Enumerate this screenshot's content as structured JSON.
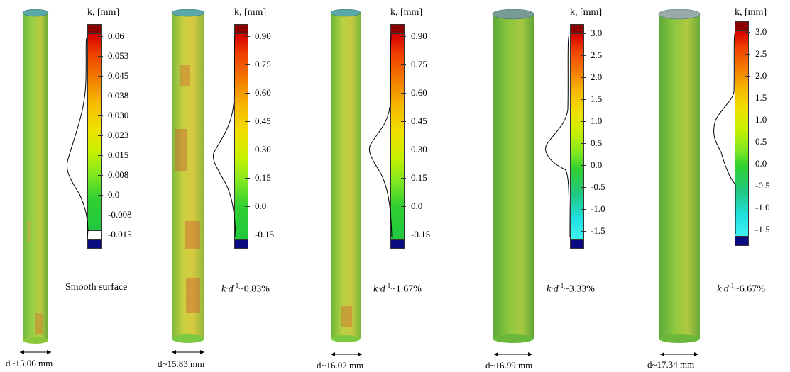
{
  "panels": [
    {
      "unit_label": "k, [mm]",
      "ticks": [
        "0.06",
        "0.053",
        "0.045",
        "0.038",
        "0.030",
        "0.023",
        "0.015",
        "0.008",
        "0.0",
        "-0.008",
        "-0.015"
      ],
      "caption": "Smooth  surface",
      "diameter": "d~15.06 mm",
      "surface_color": "#8ccc3c",
      "gradient": "smooth",
      "bottom_swatch_white": true
    },
    {
      "unit_label": "k, [mm]",
      "ticks": [
        "0.90",
        "0.75",
        "0.60",
        "0.45",
        "0.30",
        "0.15",
        "0.0",
        "-0.15"
      ],
      "caption_prefix": "k·d",
      "caption_sup": "-1",
      "caption_value": "~0.83%",
      "diameter": "d~15.83 mm",
      "surface_color": "#c8c83c",
      "gradient": "rough"
    },
    {
      "unit_label": "k, [mm]",
      "ticks": [
        "0.90",
        "0.75",
        "0.60",
        "0.45",
        "0.30",
        "0.15",
        "0.0",
        "-0.15"
      ],
      "caption_prefix": "k·d",
      "caption_sup": "-1",
      "caption_value": "~1.67%",
      "diameter": "d~16.02 mm",
      "surface_color": "#b4c83c",
      "gradient": "rough"
    },
    {
      "unit_label": "k, [mm]",
      "ticks": [
        "3.0",
        "2.5",
        "2.0",
        "1.5",
        "1.0",
        "0.5",
        "0.0",
        "-0.5",
        "-1.0",
        "-1.5"
      ],
      "caption_prefix": "k·d",
      "caption_sup": "-1",
      "caption_value": "~3.33%",
      "diameter": "d~16.99 mm",
      "surface_color": "#78c040",
      "gradient": "wide"
    },
    {
      "unit_label": "k, [mm]",
      "ticks": [
        "3.0",
        "2.5",
        "2.0",
        "1.5",
        "1.0",
        "0.5",
        "0.0",
        "-0.5",
        "-1.0",
        "-1.5"
      ],
      "caption_prefix": "k·d",
      "caption_sup": "-1",
      "caption_value": "~6.67%",
      "diameter": "d~17.34 mm",
      "surface_color": "#8cc83c",
      "gradient": "wide"
    }
  ]
}
